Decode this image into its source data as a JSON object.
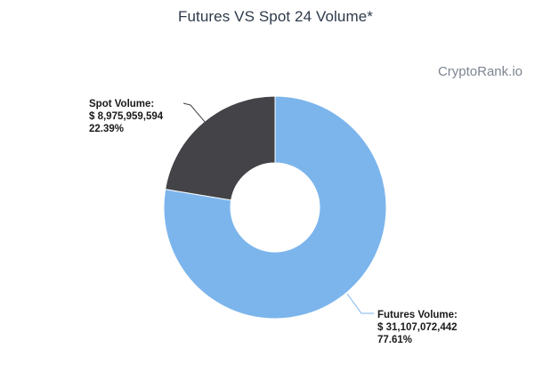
{
  "header": {
    "title": "Futures VS Spot 24 Volume*",
    "watermark": "CryptoRank.io"
  },
  "colors": {
    "futures": "#7cb5ec",
    "spot": "#434348",
    "title": "#2e3a4a",
    "label": "#1a1a1a"
  },
  "chart_data": {
    "type": "pie",
    "variant": "donut",
    "title": "Futures VS Spot 24 Volume*",
    "slices": [
      {
        "name": "Futures Volume:",
        "value": 31107072442,
        "value_label": "$ 31,107,072,442",
        "percent": 77.61,
        "percent_label": "77.61%",
        "color": "#7cb5ec"
      },
      {
        "name": "Spot Volume:",
        "value": 8975959594,
        "value_label": "$ 8,975,959,594",
        "percent": 22.39,
        "percent_label": "22.39%",
        "color": "#434348"
      }
    ]
  }
}
